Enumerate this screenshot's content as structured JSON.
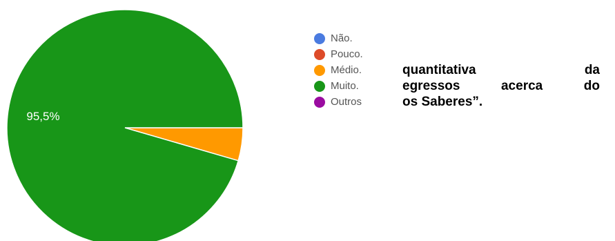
{
  "chart_data": {
    "type": "pie",
    "slices": [
      {
        "label": "Não.",
        "value": 0,
        "color": "#4a7be0"
      },
      {
        "label": "Pouco.",
        "value": 0,
        "color": "#dd4b29"
      },
      {
        "label": "Médio.",
        "value": 4.5,
        "color": "#ff9900"
      },
      {
        "label": "Muito.",
        "value": 95.5,
        "color": "#189618"
      },
      {
        "label": "Outros",
        "value": 0,
        "color": "#9a0ca0"
      }
    ],
    "data_labels": [
      {
        "slice": "Muito.",
        "text": "95,5%"
      }
    ],
    "legend_position": "right"
  },
  "caption": {
    "lines": [
      "quantitativa da",
      "egressos acerca do",
      "os Saberes”."
    ]
  }
}
